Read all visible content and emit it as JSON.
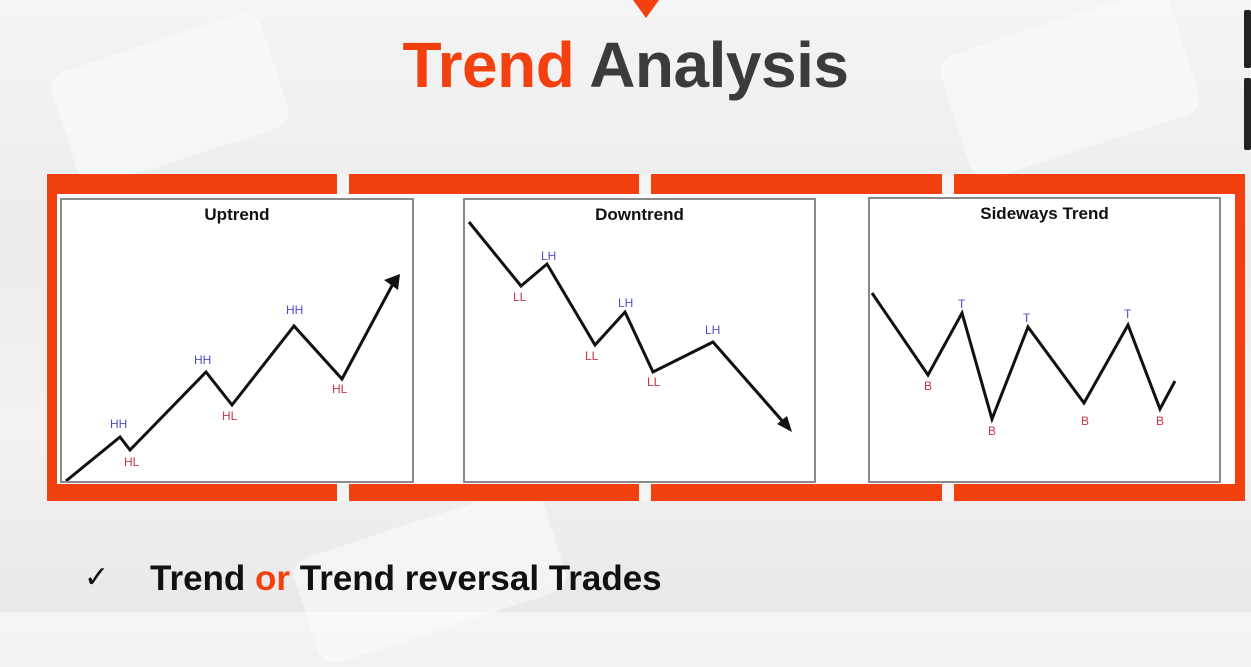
{
  "title": {
    "part1": "Trend",
    "part2": "Analysis"
  },
  "panels": [
    {
      "title": "Uptrend",
      "labels": [
        "HH",
        "HL",
        "HH",
        "HL",
        "HH",
        "HL"
      ]
    },
    {
      "title": "Downtrend",
      "labels": [
        "LL",
        "LH",
        "LL",
        "LH",
        "LL",
        "LH"
      ]
    },
    {
      "title": "Sideways Trend",
      "labels": [
        "B",
        "T",
        "B",
        "T",
        "B",
        "T",
        "B"
      ]
    }
  ],
  "bottom": {
    "check": "✓",
    "w1": "Trend",
    "w2": "or",
    "w3": "Trend reversal Trades"
  },
  "colors": {
    "accent": "#f2400f",
    "title_dark": "#3b3b3d",
    "high_label": "#4b4ec9",
    "low_label": "#c8344a"
  }
}
